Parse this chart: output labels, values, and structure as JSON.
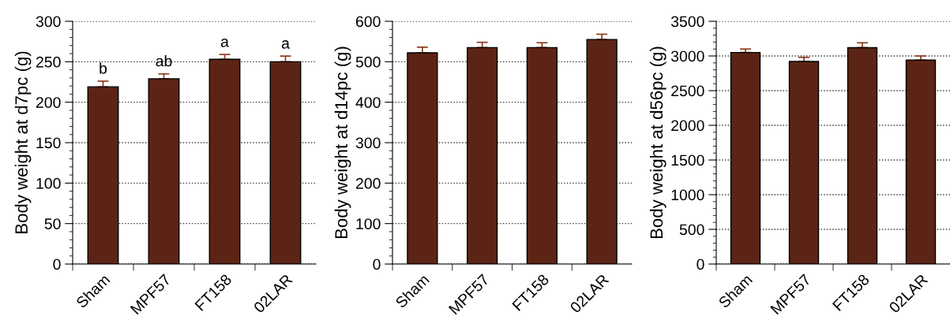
{
  "chart_data": [
    {
      "type": "bar",
      "categories": [
        "Sham",
        "MPF57",
        "FT158",
        "02LAR"
      ],
      "values": [
        219,
        229,
        253,
        250
      ],
      "errors": [
        7,
        6,
        6,
        7
      ],
      "color": "#5c2414",
      "ylabel": "Body weight at d7pc (g)",
      "ylim": [
        0,
        300
      ],
      "yticks": [
        0,
        50,
        100,
        150,
        200,
        250,
        300
      ],
      "grid": "y",
      "line_style": "dotted",
      "annotations": [
        {
          "text": "b",
          "x": "Sham",
          "y": 219
        },
        {
          "text": "ab",
          "x": "MPF57",
          "y": 229
        },
        {
          "text": "a",
          "x": "FT158",
          "y": 253
        },
        {
          "text": "a",
          "x": "02LAR",
          "y": 250
        }
      ]
    },
    {
      "type": "bar",
      "categories": [
        "Sham",
        "MPF57",
        "FT158",
        "02LAR"
      ],
      "values": [
        522,
        535,
        535,
        555
      ],
      "errors": [
        14,
        13,
        12,
        13
      ],
      "color": "#5c2414",
      "ylabel": "Body weight at d14pc (g)",
      "ylim": [
        0,
        600
      ],
      "yticks": [
        0,
        100,
        200,
        300,
        400,
        500,
        600
      ],
      "grid": "y",
      "line_style": "dotted"
    },
    {
      "type": "bar",
      "categories": [
        "Sham",
        "MPF57",
        "FT158",
        "02LAR"
      ],
      "values": [
        3050,
        2920,
        3120,
        2940
      ],
      "errors": [
        50,
        60,
        70,
        60
      ],
      "color": "#5c2414",
      "ylabel": "Body weight at d56pc (g)",
      "ylim": [
        0,
        3500
      ],
      "yticks": [
        0,
        500,
        1000,
        1500,
        2000,
        2500,
        3000,
        3500
      ],
      "grid": "y",
      "line_style": "dotted"
    }
  ]
}
